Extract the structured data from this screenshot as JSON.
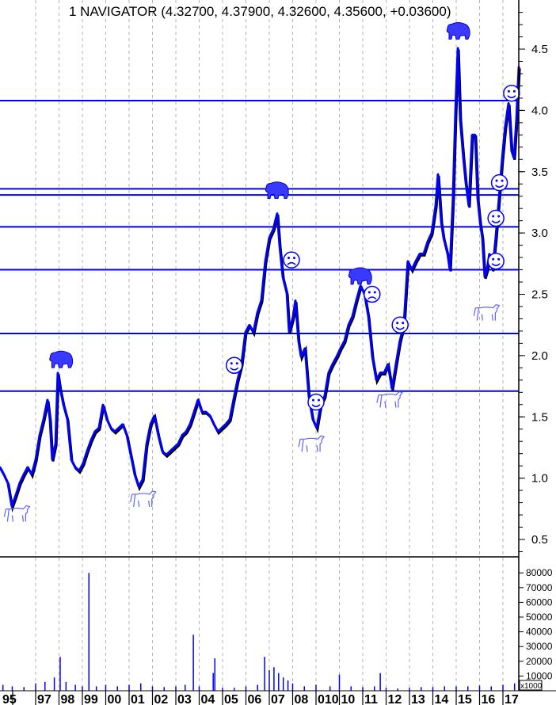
{
  "chart_data": {
    "type": "line",
    "title": "1 NAVIGATOR (4.32700, 4.37900, 4.32600, 4.35600, +0.03600)",
    "colors": {
      "price": "#0000ff",
      "shadow": "#000000",
      "levels": "#0000ff",
      "volume": "#0000ff",
      "grid": "#b4b4b4"
    },
    "price_axis": {
      "ylim": [
        0.3,
        4.85
      ],
      "ticks": [
        0.5,
        1.0,
        1.5,
        2.0,
        2.5,
        3.0,
        3.5,
        4.0,
        4.5
      ],
      "tick_labels": [
        "0.5",
        "1.0",
        "1.5",
        "2.0",
        "2.5",
        "3.0",
        "3.5",
        "4.0",
        "4.5"
      ],
      "position": "right"
    },
    "volume_axis": {
      "ylim": [
        0,
        90000
      ],
      "ticks": [
        10000,
        20000,
        30000,
        40000,
        50000,
        60000,
        70000,
        80000
      ],
      "tick_labels": [
        "10000",
        "20000",
        "30000",
        "40000",
        "50000",
        "60000",
        "70000",
        "80000"
      ],
      "unit_label": "x1000"
    },
    "x_axis": {
      "xlim": [
        1995.47,
        1997.0,
        2017.68
      ],
      "ticks": [
        1995.0,
        1996.0,
        1997.0,
        1998.0,
        1999.0,
        2000.0,
        2001.0,
        2002.0,
        2003.0,
        2004.0,
        2005.0,
        2006.0,
        2007.0,
        2008.0,
        2009.0,
        2010.0,
        2011.0,
        2012.0,
        2013.0,
        2014.0,
        2015.0,
        2016.0,
        2017.0
      ],
      "tick_labels": [
        "95",
        "",
        "97",
        "98",
        "99",
        "00",
        "01",
        "02",
        "03",
        "04",
        "05",
        "06",
        "07",
        "08",
        "010",
        "10",
        "11",
        "12",
        "13",
        "14",
        "15",
        "16",
        "17"
      ]
    },
    "grid": "vertical dashed",
    "levels": [
      4.08,
      3.36,
      3.31,
      3.05,
      2.7,
      2.18,
      1.71
    ],
    "series": [
      {
        "x": [
          1995.47,
          1995.64,
          1995.81,
          1995.98,
          1996.15,
          1996.32,
          1996.49,
          1996.66,
          1996.83,
          1997.0,
          1997.17,
          1997.34,
          1997.51,
          1997.61,
          1997.71,
          1997.85,
          1997.95,
          1998.05,
          1998.19,
          1998.36,
          1998.53,
          1998.69,
          1998.86,
          1999.03,
          1999.2,
          1999.37,
          1999.54,
          1999.71,
          1999.88,
          2000.05,
          2000.22,
          2000.39,
          2000.56,
          2000.73,
          2000.9,
          2001.07,
          2001.24,
          2001.41,
          2001.58,
          2001.75,
          2001.92,
          2002.08,
          2002.25,
          2002.42,
          2002.59,
          2002.76,
          2002.93,
          2003.1,
          2003.27,
          2003.44,
          2003.61,
          2003.78,
          2003.95,
          2004.12,
          2004.29,
          2004.46,
          2004.63,
          2004.8,
          2004.97,
          2005.14,
          2005.31,
          2005.47,
          2005.64,
          2005.81,
          2005.98,
          2006.15,
          2006.32,
          2006.49,
          2006.66,
          2006.83,
          2007.0,
          2007.17,
          2007.34,
          2007.44,
          2007.58,
          2007.75,
          2007.85,
          2008.02,
          2008.12,
          2008.25,
          2008.36,
          2008.53,
          2008.69,
          2008.86,
          2009.03,
          2009.2,
          2009.37,
          2009.54,
          2009.71,
          2009.88,
          2010.05,
          2010.22,
          2010.39,
          2010.56,
          2010.73,
          2010.9,
          2011.07,
          2011.24,
          2011.41,
          2011.58,
          2011.75,
          2011.92,
          2012.08,
          2012.25,
          2012.42,
          2012.59,
          2012.76,
          2012.93,
          2013.1,
          2013.27,
          2013.44,
          2013.61,
          2013.78,
          2013.95,
          2014.12,
          2014.22,
          2014.36,
          2014.46,
          2014.63,
          2014.73,
          2014.86,
          2014.97,
          2015.07,
          2015.17,
          2015.31,
          2015.41,
          2015.54,
          2015.68,
          2015.81,
          2015.92,
          2016.02,
          2016.12,
          2016.22,
          2016.32,
          2016.42,
          2016.56,
          2016.69,
          2016.83,
          2016.97,
          2017.1,
          2017.24,
          2017.37,
          2017.47,
          2017.58,
          2017.64,
          2017.68
        ],
        "y": [
          1.09,
          1.03,
          0.96,
          0.77,
          0.86,
          0.96,
          1.03,
          1.09,
          1.03,
          1.15,
          1.35,
          1.48,
          1.64,
          1.48,
          1.15,
          1.28,
          1.86,
          1.73,
          1.6,
          1.48,
          1.15,
          1.09,
          1.06,
          1.12,
          1.22,
          1.31,
          1.38,
          1.41,
          1.6,
          1.48,
          1.41,
          1.38,
          1.41,
          1.44,
          1.35,
          1.19,
          1.03,
          0.93,
          0.99,
          1.28,
          1.44,
          1.51,
          1.35,
          1.22,
          1.19,
          1.22,
          1.25,
          1.28,
          1.35,
          1.38,
          1.44,
          1.54,
          1.64,
          1.54,
          1.54,
          1.51,
          1.44,
          1.38,
          1.41,
          1.44,
          1.48,
          1.64,
          1.8,
          1.93,
          2.19,
          2.25,
          2.19,
          2.35,
          2.45,
          2.77,
          2.96,
          3.03,
          3.16,
          2.9,
          2.64,
          2.51,
          2.19,
          2.32,
          2.45,
          2.12,
          1.99,
          2.06,
          1.67,
          1.48,
          1.41,
          1.6,
          1.67,
          1.86,
          1.93,
          1.99,
          2.06,
          2.12,
          2.25,
          2.32,
          2.45,
          2.57,
          2.51,
          2.32,
          1.99,
          1.8,
          1.86,
          1.86,
          1.93,
          1.73,
          1.93,
          2.12,
          2.25,
          2.77,
          2.7,
          2.77,
          2.83,
          2.83,
          2.93,
          3.0,
          3.22,
          3.48,
          3.09,
          2.96,
          2.83,
          2.7,
          3.28,
          4.0,
          4.51,
          3.93,
          3.61,
          3.41,
          3.22,
          3.8,
          3.8,
          3.28,
          3.09,
          2.96,
          2.64,
          2.7,
          2.83,
          2.7,
          2.96,
          3.28,
          3.61,
          3.87,
          4.06,
          3.67,
          3.61,
          3.93,
          4.19,
          4.356
        ]
      }
    ],
    "volume": {
      "x": [
        1995.6,
        1996.0,
        1996.5,
        1997.0,
        1997.4,
        1997.8,
        1998.05,
        1998.3,
        1998.7,
        1999.0,
        1999.28,
        1999.6,
        2000.0,
        2000.5,
        2001.0,
        2001.5,
        2002.0,
        2002.5,
        2003.0,
        2003.4,
        2003.75,
        2004.0,
        2004.6,
        2004.67,
        2005.0,
        2005.5,
        2006.0,
        2006.5,
        2006.8,
        2007.0,
        2007.2,
        2007.4,
        2007.6,
        2007.8,
        2008.0,
        2008.5,
        2009.0,
        2009.6,
        2010.0,
        2010.5,
        2011.0,
        2011.5,
        2011.75,
        2012.0,
        2012.5,
        2013.0,
        2013.5,
        2014.0,
        2014.5,
        2015.0,
        2015.5,
        2016.0,
        2016.5,
        2017.0,
        2017.5
      ],
      "y": [
        4000,
        3000,
        2500,
        5000,
        6000,
        9000,
        23000,
        6000,
        4000,
        3000,
        80000,
        3000,
        4000,
        3000,
        4000,
        5000,
        3000,
        2500,
        3000,
        4000,
        38000,
        3000,
        12000,
        22000,
        2000,
        2000,
        3000,
        4000,
        23000,
        14000,
        16000,
        12000,
        9000,
        7000,
        5000,
        3000,
        4000,
        3000,
        11000,
        3000,
        2500,
        3000,
        12000,
        2000,
        1500,
        2000,
        2500,
        2500,
        3000,
        3000,
        3000,
        3500,
        3000,
        4000,
        5000
      ]
    },
    "annotations": [
      {
        "type": "bear",
        "x": 1998.1,
        "y": 1.96
      },
      {
        "type": "bear",
        "x": 2007.34,
        "y": 3.34
      },
      {
        "type": "bear",
        "x": 2010.9,
        "y": 2.64
      },
      {
        "type": "bear",
        "x": 2015.1,
        "y": 4.64
      },
      {
        "type": "bull",
        "x": 1996.2,
        "y": 0.71
      },
      {
        "type": "bull",
        "x": 2001.6,
        "y": 0.83
      },
      {
        "type": "bull",
        "x": 2008.8,
        "y": 1.28
      },
      {
        "type": "bull",
        "x": 2012.15,
        "y": 1.64
      },
      {
        "type": "bull",
        "x": 2016.3,
        "y": 2.35
      },
      {
        "type": "smile",
        "x": 2005.5,
        "y": 1.92
      },
      {
        "type": "smile",
        "x": 2009.0,
        "y": 1.62
      },
      {
        "type": "smile",
        "x": 2012.6,
        "y": 2.25
      },
      {
        "type": "smile",
        "x": 2016.7,
        "y": 2.77
      },
      {
        "type": "smile",
        "x": 2016.7,
        "y": 3.12
      },
      {
        "type": "smile",
        "x": 2016.85,
        "y": 3.41
      },
      {
        "type": "smile",
        "x": 2017.37,
        "y": 4.14
      },
      {
        "type": "frown",
        "x": 2007.95,
        "y": 2.78
      },
      {
        "type": "frown",
        "x": 2011.4,
        "y": 2.5
      }
    ]
  }
}
